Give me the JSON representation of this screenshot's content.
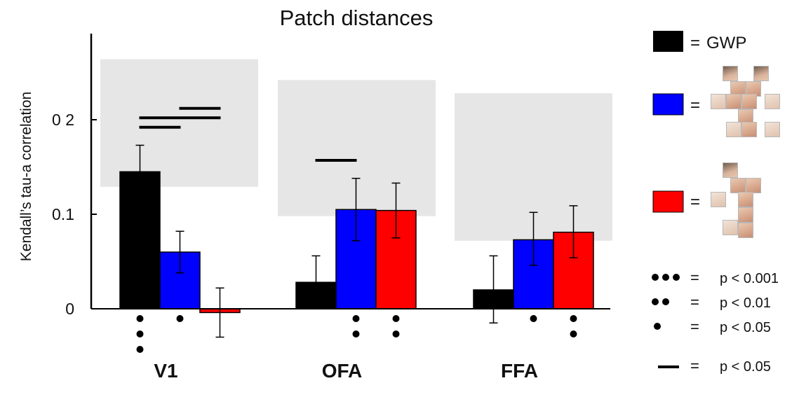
{
  "chart_data": {
    "type": "bar",
    "title": "Patch distances",
    "ylabel": "Kendall’s tau-a correlation",
    "xlabel": "",
    "ylim": [
      0,
      0.29
    ],
    "yticks": [
      {
        "value": 0,
        "label": "0"
      },
      {
        "value": 0.1,
        "label": "0.1"
      },
      {
        "value": 0.2,
        "label": "0 2"
      }
    ],
    "categories": [
      "V1",
      "OFA",
      "FFA"
    ],
    "series": [
      {
        "name": "GWP",
        "color": "#000000",
        "values": [
          0.145,
          0.028,
          0.02
        ],
        "err_low": [
          0.118,
          0.0,
          -0.015
        ],
        "err_high": [
          0.173,
          0.056,
          0.056
        ]
      },
      {
        "name": "",
        "color": "#0000ff",
        "values": [
          0.06,
          0.105,
          0.073
        ],
        "err_low": [
          0.038,
          0.072,
          0.046
        ],
        "err_high": [
          0.082,
          0.138,
          0.102
        ]
      },
      {
        "name": "",
        "color": "#ff0000",
        "values": [
          -0.004,
          0.104,
          0.081
        ],
        "err_low": [
          -0.03,
          0.075,
          0.054
        ],
        "err_high": [
          0.022,
          0.133,
          0.109
        ]
      }
    ],
    "noise_ceiling": [
      {
        "category": "V1",
        "low": 0.129,
        "high": 0.264
      },
      {
        "category": "OFA",
        "low": 0.098,
        "high": 0.242
      },
      {
        "category": "FFA",
        "low": 0.072,
        "high": 0.228
      }
    ],
    "significance_dots": [
      {
        "category": "V1",
        "series": 0,
        "count": 3
      },
      {
        "category": "V1",
        "series": 1,
        "count": 1
      },
      {
        "category": "OFA",
        "series": 1,
        "count": 2
      },
      {
        "category": "OFA",
        "series": 2,
        "count": 2
      },
      {
        "category": "FFA",
        "series": 1,
        "count": 1
      },
      {
        "category": "FFA",
        "series": 2,
        "count": 2
      }
    ],
    "comparison_lines": [
      {
        "category": "V1",
        "from_series": 0,
        "to_series": 1,
        "y": 0.192
      },
      {
        "category": "V1",
        "from_series": 0,
        "to_series": 2,
        "y": 0.202
      },
      {
        "category": "V1",
        "from_series": 1,
        "to_series": 2,
        "y": 0.212
      },
      {
        "category": "OFA",
        "from_series": 0,
        "to_series": 1,
        "y": 0.157
      }
    ],
    "grid": false,
    "legend_position": "right"
  },
  "legend": {
    "equals": "=",
    "gwp_label": "GWP",
    "sig_items": [
      {
        "dots": 3,
        "label": "p < 0.001"
      },
      {
        "dots": 2,
        "label": "p < 0.01"
      },
      {
        "dots": 1,
        "label": "p < 0.05"
      }
    ],
    "line_label": "p < 0.05"
  }
}
